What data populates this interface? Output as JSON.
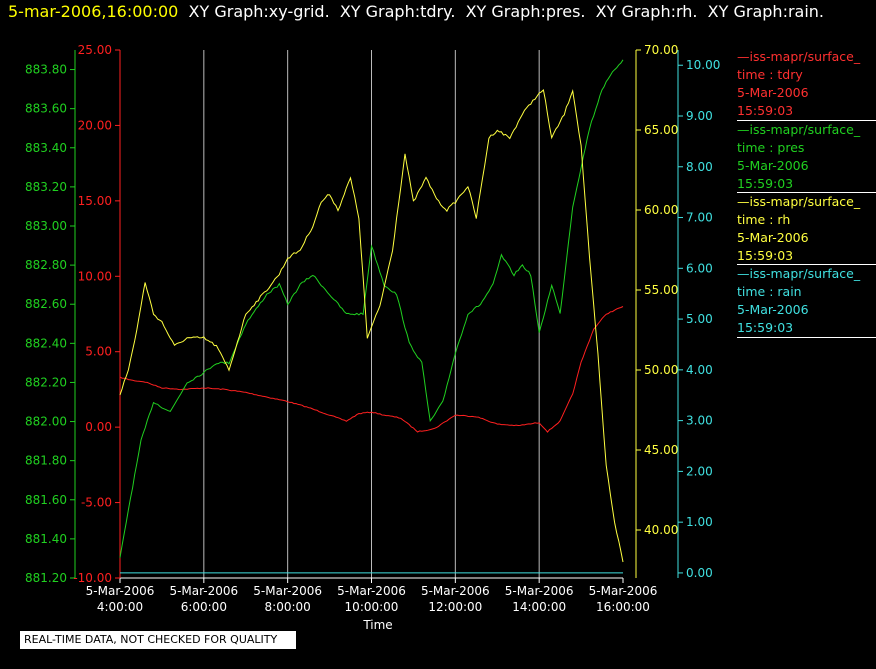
{
  "header": {
    "timestamp": "5-mar-2006,16:00:00",
    "graphs": "  XY Graph:xy-grid.  XY Graph:tdry.  XY Graph:pres.  XY Graph:rh.  XY Graph:rain."
  },
  "legend": [
    {
      "color": "#ff3030",
      "name": "iss-mapr/surface_",
      "var": "time : tdry",
      "date": "5-Mar-2006",
      "time": "15:59:03"
    },
    {
      "color": "#20d020",
      "name": "iss-mapr/surface_",
      "var": "time : pres",
      "date": "5-Mar-2006",
      "time": "15:59:03"
    },
    {
      "color": "#ffff40",
      "name": "iss-mapr/surface_",
      "var": "time : rh",
      "date": "5-Mar-2006",
      "time": "15:59:03"
    },
    {
      "color": "#40e0e0",
      "name": "iss-mapr/surface_",
      "var": "time : rain",
      "date": "5-Mar-2006",
      "time": "15:59:03"
    }
  ],
  "disclaimer": "REAL-TIME DATA, NOT CHECKED FOR QUALITY",
  "colors": {
    "tdry": "#ff2020",
    "pres": "#20d020",
    "rh": "#ffff40",
    "rain": "#40e0e0",
    "grid": "#ffffff"
  },
  "chart_data": {
    "type": "line",
    "xlabel": "Time",
    "x_ticks": [
      {
        "date": "5-Mar-2006",
        "time": "4:00:00",
        "h": 4
      },
      {
        "date": "5-Mar-2006",
        "time": "6:00:00",
        "h": 6
      },
      {
        "date": "5-Mar-2006",
        "time": "8:00:00",
        "h": 8
      },
      {
        "date": "5-Mar-2006",
        "time": "10:00:00",
        "h": 10
      },
      {
        "date": "5-Mar-2006",
        "time": "12:00:00",
        "h": 12
      },
      {
        "date": "5-Mar-2006",
        "time": "14:00:00",
        "h": 14
      },
      {
        "date": "5-Mar-2006",
        "time": "16:00:00",
        "h": 16
      }
    ],
    "xlim_hours": [
      4,
      16
    ],
    "grid": "vertical",
    "axes": {
      "tdry": {
        "ylim": [
          -10,
          25
        ],
        "ticks": [
          "-10.00",
          "-5.00",
          "0.00",
          "5.00",
          "10.00",
          "15.00",
          "20.00",
          "25.00"
        ]
      },
      "pres": {
        "ylim": [
          881.2,
          883.9
        ],
        "ticks": [
          "881.20",
          "881.40",
          "881.60",
          "881.80",
          "882.00",
          "882.20",
          "882.40",
          "882.60",
          "882.80",
          "883.00",
          "883.20",
          "883.40",
          "883.60",
          "883.80"
        ]
      },
      "rh": {
        "ylim": [
          37,
          70
        ],
        "ticks": [
          "40.00",
          "45.00",
          "50.00",
          "55.00",
          "60.00",
          "65.00",
          "70.00"
        ]
      },
      "rain": {
        "ylim": [
          -0.1,
          10.3
        ],
        "ticks": [
          "0.00",
          "1.00",
          "2.00",
          "3.00",
          "4.00",
          "5.00",
          "6.00",
          "7.00",
          "8.00",
          "9.00",
          "10.00"
        ]
      }
    },
    "series": [
      {
        "name": "time : tdry",
        "key": "tdry",
        "points": [
          [
            4.0,
            3.3
          ],
          [
            4.3,
            3.1
          ],
          [
            4.6,
            3.0
          ],
          [
            5.0,
            2.6
          ],
          [
            5.5,
            2.5
          ],
          [
            6.0,
            2.6
          ],
          [
            6.5,
            2.5
          ],
          [
            7.0,
            2.3
          ],
          [
            7.5,
            2.0
          ],
          [
            8.0,
            1.7
          ],
          [
            8.5,
            1.3
          ],
          [
            9.0,
            0.8
          ],
          [
            9.4,
            0.4
          ],
          [
            9.7,
            0.9
          ],
          [
            10.0,
            1.0
          ],
          [
            10.3,
            0.8
          ],
          [
            10.7,
            0.6
          ],
          [
            11.1,
            -0.3
          ],
          [
            11.5,
            -0.1
          ],
          [
            12.0,
            0.8
          ],
          [
            12.5,
            0.7
          ],
          [
            13.0,
            0.2
          ],
          [
            13.5,
            0.1
          ],
          [
            14.0,
            0.3
          ],
          [
            14.2,
            -0.3
          ],
          [
            14.5,
            0.4
          ],
          [
            14.8,
            2.2
          ],
          [
            15.0,
            4.3
          ],
          [
            15.3,
            6.5
          ],
          [
            15.6,
            7.5
          ],
          [
            16.0,
            8.0
          ]
        ]
      },
      {
        "name": "time : pres",
        "key": "pres",
        "points": [
          [
            4.0,
            881.3
          ],
          [
            4.2,
            881.55
          ],
          [
            4.5,
            881.9
          ],
          [
            4.8,
            882.1
          ],
          [
            5.2,
            882.05
          ],
          [
            5.6,
            882.2
          ],
          [
            6.0,
            882.25
          ],
          [
            6.3,
            882.3
          ],
          [
            6.6,
            882.3
          ],
          [
            7.0,
            882.5
          ],
          [
            7.5,
            882.65
          ],
          [
            7.8,
            882.7
          ],
          [
            8.0,
            882.6
          ],
          [
            8.3,
            882.7
          ],
          [
            8.6,
            882.75
          ],
          [
            9.0,
            882.65
          ],
          [
            9.4,
            882.55
          ],
          [
            9.8,
            882.55
          ],
          [
            10.0,
            882.9
          ],
          [
            10.3,
            882.7
          ],
          [
            10.6,
            882.65
          ],
          [
            10.9,
            882.4
          ],
          [
            11.2,
            882.3
          ],
          [
            11.4,
            882.0
          ],
          [
            11.7,
            882.1
          ],
          [
            12.0,
            882.35
          ],
          [
            12.3,
            882.55
          ],
          [
            12.6,
            882.6
          ],
          [
            12.9,
            882.7
          ],
          [
            13.1,
            882.85
          ],
          [
            13.4,
            882.75
          ],
          [
            13.6,
            882.8
          ],
          [
            13.8,
            882.75
          ],
          [
            14.0,
            882.45
          ],
          [
            14.3,
            882.7
          ],
          [
            14.5,
            882.55
          ],
          [
            14.8,
            883.1
          ],
          [
            15.0,
            883.3
          ],
          [
            15.2,
            883.5
          ],
          [
            15.5,
            883.7
          ],
          [
            15.8,
            883.8
          ],
          [
            16.0,
            883.85
          ]
        ]
      },
      {
        "name": "time : rh",
        "key": "rh",
        "points": [
          [
            4.0,
            48.5
          ],
          [
            4.2,
            50.0
          ],
          [
            4.4,
            52.5
          ],
          [
            4.6,
            55.5
          ],
          [
            4.8,
            53.5
          ],
          [
            5.0,
            53.0
          ],
          [
            5.3,
            51.5
          ],
          [
            5.6,
            52.0
          ],
          [
            6.0,
            52.0
          ],
          [
            6.3,
            51.5
          ],
          [
            6.6,
            50.0
          ],
          [
            7.0,
            53.5
          ],
          [
            7.5,
            55.0
          ],
          [
            7.8,
            56.0
          ],
          [
            8.0,
            57.0
          ],
          [
            8.3,
            57.5
          ],
          [
            8.6,
            59.0
          ],
          [
            8.8,
            60.5
          ],
          [
            9.0,
            61.0
          ],
          [
            9.2,
            60.0
          ],
          [
            9.5,
            62.0
          ],
          [
            9.7,
            59.5
          ],
          [
            9.9,
            52.0
          ],
          [
            10.2,
            54.0
          ],
          [
            10.5,
            57.5
          ],
          [
            10.8,
            63.5
          ],
          [
            11.0,
            60.5
          ],
          [
            11.3,
            62.0
          ],
          [
            11.6,
            60.5
          ],
          [
            11.8,
            60.0
          ],
          [
            12.0,
            60.5
          ],
          [
            12.3,
            61.5
          ],
          [
            12.5,
            59.5
          ],
          [
            12.8,
            64.5
          ],
          [
            13.0,
            65.0
          ],
          [
            13.3,
            64.5
          ],
          [
            13.6,
            66.0
          ],
          [
            13.9,
            67.0
          ],
          [
            14.1,
            67.5
          ],
          [
            14.3,
            64.5
          ],
          [
            14.6,
            66.0
          ],
          [
            14.8,
            67.5
          ],
          [
            15.0,
            64.0
          ],
          [
            15.2,
            57.0
          ],
          [
            15.4,
            51.0
          ],
          [
            15.6,
            44.0
          ],
          [
            15.8,
            40.5
          ],
          [
            16.0,
            38.0
          ]
        ]
      },
      {
        "name": "time : rain",
        "key": "rain",
        "points": [
          [
            4.0,
            0.0
          ],
          [
            16.0,
            0.0
          ]
        ]
      }
    ]
  }
}
